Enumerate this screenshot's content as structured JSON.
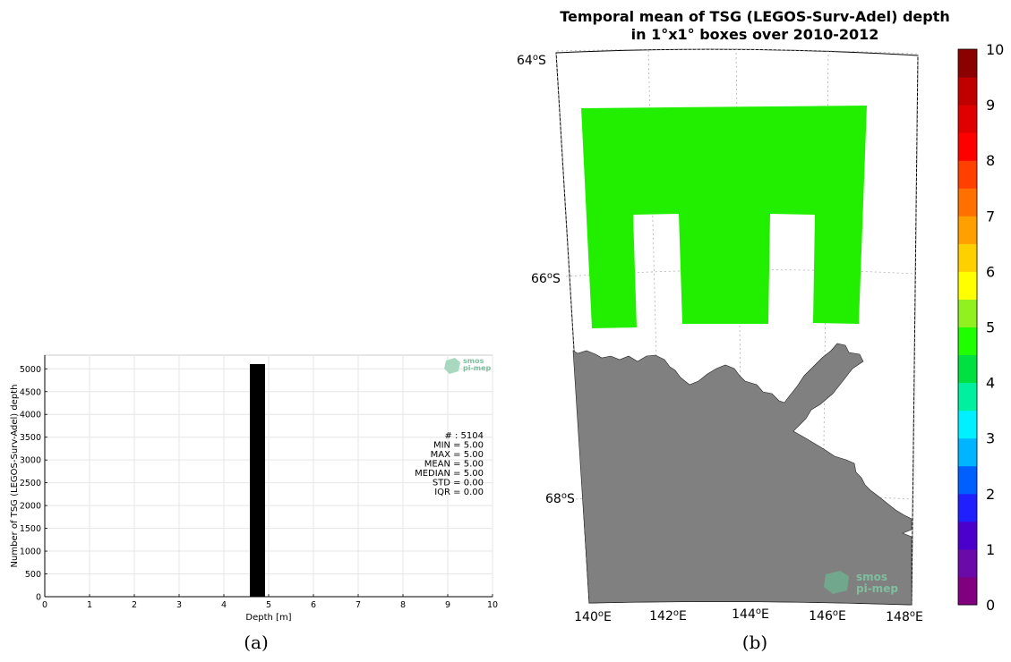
{
  "chart_data": [
    {
      "type": "bar",
      "panel_caption": "(a)",
      "xlabel": "Depth [m]",
      "ylabel": "Number of TSG (LEGOS-Surv-Adel) depth",
      "xlim": [
        0,
        10
      ],
      "ylim": [
        0,
        5300
      ],
      "x_ticks": [
        "0",
        "1",
        "2",
        "3",
        "4",
        "5",
        "6",
        "7",
        "8",
        "9",
        "10"
      ],
      "y_ticks": [
        "0",
        "500",
        "1000",
        "1500",
        "2000",
        "2500",
        "3000",
        "3500",
        "4000",
        "4500",
        "5000"
      ],
      "bars": [
        {
          "x_start": 4.58,
          "x_end": 4.92,
          "value": 5104
        }
      ],
      "grid": true,
      "stats": [
        "# : 5104",
        "MIN = 5.00",
        "MAX =  5.00",
        "MEAN = 5.00",
        "MEDIAN = 5.00",
        "STD = 0.00",
        "IQR = 0.00"
      ],
      "logo": {
        "line1": "smos",
        "line2": "pi-mep"
      }
    },
    {
      "type": "heatmap",
      "panel_caption": "(b)",
      "title_line1": "Temporal mean of TSG (LEGOS-Surv-Adel) depth",
      "title_line2": "in 1°x1° boxes over 2010-2012",
      "lat_labels": [
        "64",
        "66",
        "68"
      ],
      "lat_suffix": "S",
      "lon_labels": [
        "140",
        "142",
        "144",
        "146",
        "148"
      ],
      "lon_suffix": "E",
      "degree_sign": "o",
      "cells_value": 5,
      "colorbar": {
        "ticks": [
          "0",
          "1",
          "2",
          "3",
          "4",
          "5",
          "6",
          "7",
          "8",
          "9",
          "10"
        ],
        "colors": [
          "#800080",
          "#6a0aa8",
          "#4b00cc",
          "#2020ff",
          "#0060ff",
          "#00b4ff",
          "#00f0ff",
          "#00f0a0",
          "#00e040",
          "#20ff00",
          "#90f020",
          "#ffff00",
          "#ffd000",
          "#ffa000",
          "#ff7000",
          "#ff4000",
          "#ff0000",
          "#e00000",
          "#c00000",
          "#8b0000"
        ]
      },
      "land_color": "#808080",
      "data_color": "#22ee00",
      "logo": {
        "line1": "smos",
        "line2": "pi-mep"
      }
    }
  ]
}
